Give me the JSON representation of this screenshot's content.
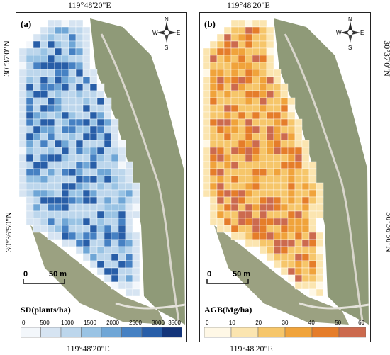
{
  "coords": {
    "lon_label": "119°48'20\"E",
    "lat_label_upper": "30°37'0\"N",
    "lat_label_lower": "30°36'50\"N"
  },
  "compass": {
    "n": "N",
    "s": "S",
    "e": "E",
    "w": "W"
  },
  "scale": {
    "zero": "0",
    "label": "50 m"
  },
  "panels": [
    {
      "tag": "(a)",
      "legend_title": "SD(plants/ha)",
      "ticks": [
        "0",
        "500",
        "1000",
        "1500",
        "2000",
        "2500",
        "3000",
        "3500"
      ],
      "colors": [
        "#f3f7fb",
        "#d6e4f2",
        "#bcd6ec",
        "#99c3e4",
        "#6fa6d6",
        "#4681c3",
        "#285ea8",
        "#14357a"
      ]
    },
    {
      "tag": "(b)",
      "legend_title": "AGB(Mg/ha)",
      "ticks": [
        "0",
        "10",
        "20",
        "30",
        "40",
        "50",
        "60"
      ],
      "colors": [
        "#fff8e6",
        "#fbe5b0",
        "#f6c66a",
        "#f0a33b",
        "#e57d2a",
        "#cc6a4e"
      ]
    }
  ]
}
